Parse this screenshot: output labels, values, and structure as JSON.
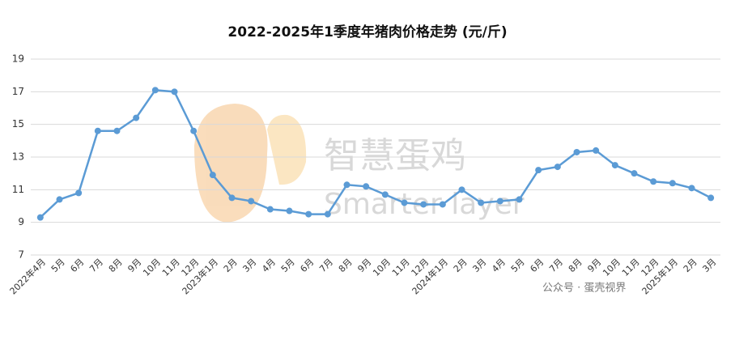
{
  "chart_data": {
    "type": "line",
    "title": "2022-2025年1季度年猪肉价格走势 (元/斤)",
    "categories": [
      "2022年4月",
      "5月",
      "6月",
      "7月",
      "8月",
      "9月",
      "10月",
      "11月",
      "12月",
      "2023年1月",
      "2月",
      "3月",
      "4月",
      "5月",
      "6月",
      "7月",
      "8月",
      "9月",
      "10月",
      "11月",
      "12月",
      "2024年1月",
      "2月",
      "3月",
      "4月",
      "5月",
      "6月",
      "7月",
      "8月",
      "9月",
      "10月",
      "11月",
      "12月",
      "2025年1月",
      "2月",
      "3月"
    ],
    "values": [
      9.3,
      10.4,
      10.8,
      14.6,
      14.6,
      15.4,
      17.1,
      17.0,
      14.6,
      11.9,
      10.5,
      10.3,
      9.8,
      9.7,
      9.5,
      9.5,
      11.3,
      11.2,
      10.7,
      10.2,
      10.1,
      10.1,
      11.0,
      10.2,
      10.3,
      10.4,
      12.2,
      12.4,
      13.3,
      13.4,
      12.5,
      12.0,
      11.5,
      11.4,
      11.1,
      10.5
    ],
    "color": "#5b9bd5",
    "ylim": [
      7,
      19
    ],
    "yticks": [
      7,
      9,
      11,
      13,
      15,
      17,
      19
    ],
    "grid": true,
    "annotations": [
      "智慧蛋鸡",
      "Smarter layer",
      "公众号 · 蛋壳视界"
    ]
  }
}
